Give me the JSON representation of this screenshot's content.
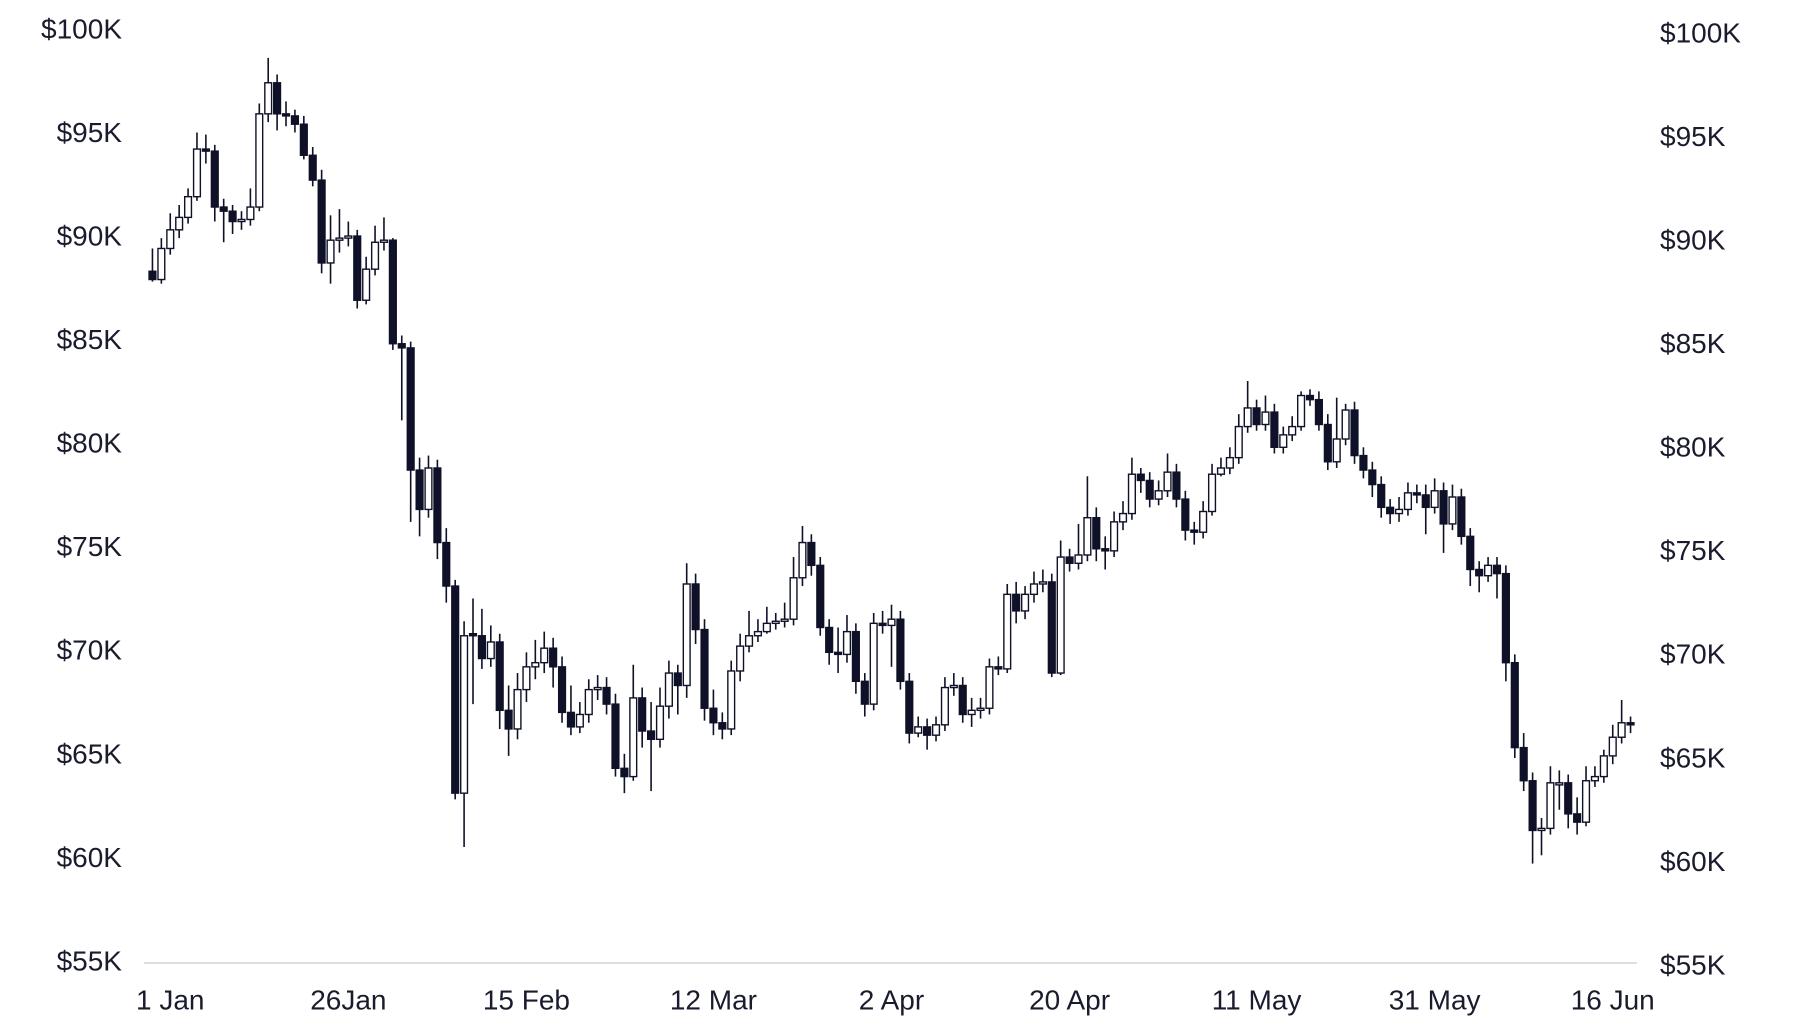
{
  "chart_data": {
    "type": "candlestick",
    "categories": [
      null,
      null,
      "1 Jan",
      null,
      null,
      null,
      null,
      null,
      null,
      null,
      null,
      null,
      null,
      null,
      null,
      null,
      null,
      null,
      null,
      null,
      null,
      null,
      "26Jan",
      null,
      null,
      null,
      null,
      null,
      null,
      null,
      null,
      null,
      null,
      null,
      null,
      null,
      null,
      null,
      null,
      null,
      null,
      null,
      "15 Feb",
      null,
      null,
      null,
      null,
      null,
      null,
      null,
      null,
      null,
      null,
      null,
      null,
      null,
      null,
      null,
      null,
      null,
      null,
      null,
      null,
      "12 Mar",
      null,
      null,
      null,
      null,
      null,
      null,
      null,
      null,
      null,
      null,
      null,
      null,
      null,
      null,
      null,
      null,
      null,
      null,
      null,
      "2 Apr",
      null,
      null,
      null,
      null,
      null,
      null,
      null,
      null,
      null,
      null,
      null,
      null,
      null,
      null,
      null,
      null,
      null,
      null,
      null,
      "20 Apr",
      null,
      null,
      null,
      null,
      null,
      null,
      null,
      null,
      null,
      null,
      null,
      null,
      null,
      null,
      null,
      null,
      null,
      null,
      null,
      null,
      "11 May",
      null,
      null,
      null,
      null,
      null,
      null,
      null,
      null,
      null,
      null,
      null,
      null,
      null,
      null,
      null,
      null,
      null,
      null,
      null,
      "31 May",
      null,
      null,
      null,
      null,
      null,
      null,
      null,
      null,
      null,
      null,
      null,
      null,
      null,
      null,
      null,
      null,
      null,
      null,
      null,
      "16 Jun",
      null,
      null
    ],
    "open": [
      88.4,
      88.0,
      89.5,
      90.4,
      91.0,
      92.0,
      94.3,
      94.2,
      91.5,
      91.3,
      90.8,
      90.9,
      91.5,
      96.0,
      97.5,
      96.0,
      95.9,
      95.5,
      94.0,
      92.8,
      88.8,
      89.9,
      90.0,
      90.1,
      87.0,
      88.5,
      89.8,
      89.9,
      84.9,
      84.7,
      78.8,
      76.9,
      78.9,
      75.3,
      73.2,
      63.2,
      70.9,
      70.8,
      69.7,
      70.5,
      67.2,
      66.3,
      68.2,
      69.3,
      69.5,
      70.2,
      69.3,
      67.1,
      66.4,
      67.0,
      68.2,
      68.3,
      67.5,
      64.4,
      64.0,
      67.8,
      66.2,
      65.8,
      67.4,
      69.0,
      68.4,
      73.3,
      71.1,
      67.3,
      66.6,
      66.3,
      69.1,
      70.3,
      70.8,
      71.0,
      71.4,
      71.5,
      71.6,
      73.6,
      75.3,
      74.2,
      71.2,
      70.0,
      69.9,
      71.0,
      68.6,
      67.5,
      71.4,
      71.3,
      71.6,
      68.6,
      66.1,
      66.4,
      66.0,
      66.5,
      68.3,
      68.4,
      67.0,
      67.2,
      67.3,
      69.3,
      69.2,
      72.8,
      72.0,
      72.8,
      73.3,
      73.4,
      69.0,
      74.6,
      74.3,
      74.7,
      76.5,
      75.0,
      74.9,
      76.3,
      76.7,
      78.6,
      78.3,
      77.4,
      77.8,
      78.7,
      77.4,
      75.9,
      75.8,
      76.8,
      78.6,
      78.9,
      79.4,
      80.9,
      81.8,
      81.0,
      81.6,
      79.9,
      80.5,
      80.9,
      82.4,
      82.2,
      81.0,
      79.2,
      80.3,
      81.7,
      79.5,
      78.8,
      78.1,
      77.0,
      76.7,
      76.9,
      77.7,
      77.6,
      77.0,
      77.8,
      76.2,
      77.5,
      75.6,
      74.0,
      73.7,
      74.2,
      73.8,
      69.5,
      65.4,
      63.8,
      61.4,
      61.5,
      63.6,
      63.7,
      62.2,
      61.8,
      63.8,
      64.0,
      65.0,
      65.9,
      66.6
    ],
    "high": [
      89.5,
      90.0,
      91.2,
      91.6,
      92.4,
      95.1,
      95.0,
      94.5,
      91.9,
      91.6,
      91.3,
      92.4,
      96.5,
      98.7,
      97.9,
      96.6,
      96.2,
      95.9,
      94.4,
      93.3,
      91.1,
      91.4,
      90.8,
      90.4,
      89.1,
      90.6,
      91.0,
      90.0,
      85.3,
      85.0,
      79.4,
      79.5,
      79.3,
      76.0,
      73.5,
      71.5,
      72.6,
      72.1,
      71.3,
      70.9,
      68.4,
      69.0,
      70.0,
      70.6,
      71.0,
      70.7,
      69.8,
      68.4,
      67.6,
      68.7,
      68.9,
      68.8,
      68.0,
      65.1,
      69.4,
      68.3,
      67.6,
      68.3,
      69.6,
      69.4,
      74.3,
      73.8,
      71.6,
      68.2,
      67.1,
      69.6,
      70.9,
      72.0,
      71.6,
      72.2,
      71.9,
      72.4,
      74.6,
      76.1,
      75.7,
      74.6,
      71.6,
      71.2,
      71.8,
      71.4,
      69.0,
      71.9,
      72.0,
      72.3,
      72.0,
      69.0,
      66.9,
      66.8,
      66.9,
      68.8,
      69.0,
      68.8,
      67.8,
      67.8,
      69.7,
      69.8,
      73.3,
      73.4,
      73.2,
      73.9,
      74.0,
      73.8,
      75.4,
      75.0,
      76.2,
      78.5,
      77.0,
      75.6,
      76.8,
      77.3,
      79.4,
      78.9,
      78.7,
      78.3,
      79.6,
      79.1,
      77.8,
      76.3,
      77.3,
      79.1,
      79.4,
      79.9,
      81.5,
      83.1,
      82.2,
      82.4,
      82.0,
      80.9,
      81.4,
      82.6,
      82.7,
      82.6,
      81.5,
      82.3,
      82.0,
      82.1,
      79.9,
      79.2,
      78.5,
      77.4,
      77.5,
      78.2,
      78.1,
      78.1,
      78.4,
      78.2,
      78.1,
      77.9,
      76.0,
      74.4,
      74.6,
      74.6,
      74.2,
      69.9,
      66.1,
      64.2,
      62.0,
      64.5,
      64.3,
      64.1,
      63.0,
      64.5,
      64.5,
      65.3,
      66.5,
      67.7,
      66.9
    ],
    "low": [
      87.9,
      87.8,
      89.2,
      90.0,
      90.7,
      91.8,
      93.6,
      90.8,
      89.8,
      90.2,
      90.4,
      90.6,
      91.3,
      95.6,
      95.2,
      95.4,
      95.1,
      93.8,
      92.5,
      88.3,
      87.8,
      89.3,
      89.6,
      86.6,
      86.8,
      88.2,
      89.4,
      84.6,
      81.2,
      76.3,
      75.6,
      76.5,
      74.5,
      72.4,
      62.9,
      60.6,
      67.5,
      69.2,
      69.3,
      66.3,
      65.0,
      65.8,
      67.6,
      68.7,
      69.0,
      68.3,
      66.6,
      66.0,
      66.1,
      66.6,
      67.7,
      67.0,
      64.0,
      63.2,
      63.8,
      65.4,
      63.3,
      65.4,
      66.8,
      67.0,
      67.8,
      70.4,
      66.7,
      66.0,
      65.8,
      66.0,
      68.6,
      70.0,
      70.5,
      70.9,
      71.1,
      71.2,
      71.3,
      73.2,
      73.7,
      70.8,
      69.4,
      69.0,
      69.5,
      68.0,
      66.9,
      67.2,
      70.9,
      69.3,
      68.2,
      65.6,
      65.9,
      65.3,
      65.7,
      66.2,
      67.9,
      66.6,
      66.4,
      66.8,
      67.0,
      68.9,
      69.0,
      71.4,
      71.6,
      72.4,
      72.9,
      68.8,
      68.9,
      73.9,
      74.0,
      74.4,
      74.4,
      74.0,
      74.6,
      75.9,
      76.4,
      77.7,
      77.0,
      77.1,
      77.5,
      77.0,
      75.4,
      75.2,
      75.5,
      76.6,
      78.5,
      78.6,
      79.1,
      80.6,
      80.7,
      80.7,
      79.6,
      79.6,
      80.2,
      80.7,
      81.9,
      80.7,
      78.8,
      78.9,
      80.0,
      79.1,
      78.4,
      77.5,
      76.5,
      76.2,
      76.3,
      76.6,
      77.2,
      75.7,
      76.7,
      74.8,
      75.9,
      75.2,
      73.2,
      72.9,
      73.4,
      72.6,
      68.6,
      64.9,
      63.3,
      59.8,
      60.2,
      61.2,
      62.4,
      61.5,
      61.2,
      61.6,
      63.5,
      63.7,
      64.6,
      65.6,
      66.1
    ],
    "close": [
      88.0,
      89.5,
      90.4,
      91.0,
      92.0,
      94.3,
      94.2,
      91.5,
      91.3,
      90.8,
      90.9,
      91.5,
      96.0,
      97.5,
      96.0,
      95.9,
      95.5,
      94.0,
      92.8,
      88.8,
      89.9,
      90.0,
      90.1,
      87.0,
      88.5,
      89.8,
      89.9,
      84.9,
      84.7,
      78.8,
      76.9,
      78.9,
      75.3,
      73.2,
      63.2,
      70.8,
      70.8,
      69.7,
      70.5,
      67.2,
      66.3,
      68.2,
      69.3,
      69.5,
      70.2,
      69.3,
      67.1,
      66.4,
      67.0,
      68.2,
      68.3,
      67.5,
      64.4,
      64.0,
      67.8,
      66.2,
      65.8,
      67.4,
      69.0,
      68.4,
      73.3,
      71.1,
      67.3,
      66.6,
      66.3,
      69.1,
      70.3,
      70.8,
      71.0,
      71.4,
      71.5,
      71.6,
      73.6,
      75.3,
      74.2,
      71.2,
      70.0,
      69.9,
      71.0,
      68.6,
      67.5,
      71.4,
      71.3,
      71.6,
      68.6,
      66.1,
      66.4,
      66.0,
      66.5,
      68.3,
      68.4,
      67.0,
      67.2,
      67.3,
      69.3,
      69.2,
      72.8,
      72.0,
      72.8,
      73.3,
      73.4,
      69.0,
      74.6,
      74.3,
      74.7,
      76.5,
      75.0,
      74.9,
      76.3,
      76.7,
      78.6,
      78.3,
      77.4,
      77.8,
      78.7,
      77.4,
      75.9,
      75.8,
      76.8,
      78.6,
      78.9,
      79.4,
      80.9,
      81.8,
      81.0,
      81.6,
      79.9,
      80.5,
      80.9,
      82.4,
      82.2,
      81.0,
      79.2,
      80.3,
      81.7,
      79.5,
      78.8,
      78.1,
      77.0,
      76.7,
      76.9,
      77.7,
      77.6,
      77.0,
      77.8,
      76.2,
      77.5,
      75.6,
      74.0,
      73.7,
      74.2,
      73.8,
      69.5,
      65.4,
      63.8,
      61.4,
      61.5,
      63.7,
      63.7,
      62.2,
      61.8,
      63.8,
      64.0,
      65.0,
      65.9,
      66.6,
      66.5
    ],
    "up_color": "#ffffff",
    "down_color": "#0f1128",
    "ylim": [
      55,
      100
    ],
    "yticks": [
      {
        "value": 55,
        "label": "$55K"
      },
      {
        "value": 60,
        "label": "$60K"
      },
      {
        "value": 65,
        "label": "$65K"
      },
      {
        "value": 70,
        "label": "$70K"
      },
      {
        "value": 75,
        "label": "$75K"
      },
      {
        "value": 80,
        "label": "$80K"
      },
      {
        "value": 85,
        "label": "$85K"
      },
      {
        "value": 90,
        "label": "$90K"
      },
      {
        "value": 95,
        "label": "$95K"
      },
      {
        "value": 100,
        "label": "$100K"
      }
    ],
    "y2lim": [
      55,
      100
    ],
    "y2ticks": [
      {
        "value": 55,
        "label": "$55K"
      },
      {
        "value": 60,
        "label": "$60K"
      },
      {
        "value": 65,
        "label": "$65K"
      },
      {
        "value": 70,
        "label": "$70K"
      },
      {
        "value": 75,
        "label": "$75K"
      },
      {
        "value": 80,
        "label": "$80K"
      },
      {
        "value": 85,
        "label": "$85K"
      },
      {
        "value": 90,
        "label": "$90K"
      },
      {
        "value": 95,
        "label": "$95K"
      },
      {
        "value": 100,
        "label": "$100K"
      }
    ],
    "grid": false
  }
}
